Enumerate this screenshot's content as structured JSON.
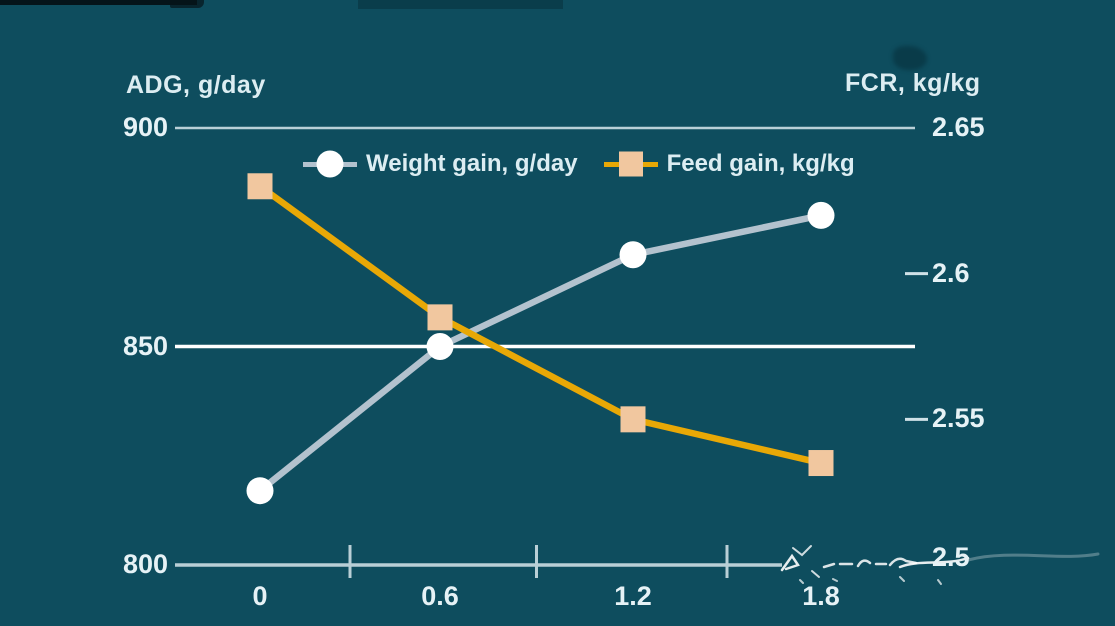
{
  "chart_data": {
    "type": "line",
    "categories": [
      0,
      0.6,
      1.2,
      1.8
    ],
    "x_axis": {
      "tick_labels": [
        "0",
        "0.6",
        "1.2",
        "1.8"
      ]
    },
    "left_axis": {
      "title": "ADG, g/day",
      "tick_labels": [
        "900",
        "850",
        "800"
      ],
      "tick_values": [
        900,
        850,
        800
      ],
      "min": 800,
      "max": 900
    },
    "right_axis": {
      "title": "FCR, kg/kg",
      "tick_labels": [
        "2.65",
        "2.6",
        "2.55",
        "2.5"
      ],
      "tick_values": [
        2.65,
        2.6,
        2.55,
        2.5
      ],
      "min": 2.5,
      "max": 2.65
    },
    "series": [
      {
        "name": "Weight gain, g/day",
        "axis": "left",
        "values": [
          817,
          850,
          871,
          880
        ],
        "line_color": "#b3c2ce",
        "marker": "circle",
        "marker_color": "#ffffff"
      },
      {
        "name": "Feed gain, kg/kg",
        "axis": "right",
        "values": [
          2.63,
          2.585,
          2.55,
          2.535
        ],
        "line_color": "#e8a806",
        "marker": "square",
        "marker_color": "#f1c79f"
      }
    ],
    "legend": {
      "position": "top-center",
      "entries": [
        "Weight gain, g/day",
        "Feed gain, kg/kg"
      ]
    },
    "grid": "horizontal-only",
    "colors": {
      "background": "#0e4d5e",
      "gridline_900": "#b9d0d8",
      "gridline_850": "#ffffff",
      "x_axis_line": "#b9cfd6",
      "text": "#dcedf2"
    }
  }
}
